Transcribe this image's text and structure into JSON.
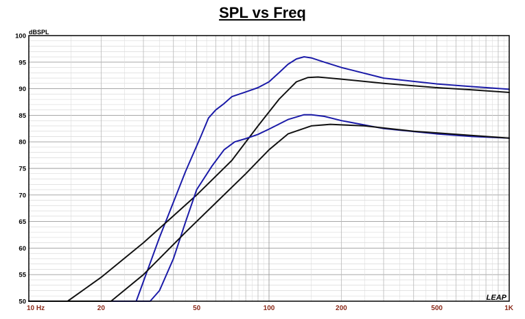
{
  "chart_data": {
    "type": "line",
    "title": "SPL vs Freq",
    "ylabel": "dBSPL",
    "xlabel": "",
    "x_scale": "log",
    "xlim": [
      10,
      1000
    ],
    "ylim": [
      50,
      100
    ],
    "grid": true,
    "x_ticks": [
      {
        "value": 10,
        "label": "10  Hz"
      },
      {
        "value": 20,
        "label": "20"
      },
      {
        "value": 50,
        "label": "50"
      },
      {
        "value": 100,
        "label": "100"
      },
      {
        "value": 200,
        "label": "200"
      },
      {
        "value": 500,
        "label": "500"
      },
      {
        "value": 1000,
        "label": "1K"
      }
    ],
    "y_ticks": [
      100,
      95,
      90,
      85,
      80,
      75,
      70,
      65,
      60,
      55,
      50
    ],
    "watermark": "LEAP",
    "series": [
      {
        "color": "#1a1aa8",
        "points": [
          [
            10,
            50
          ],
          [
            25,
            50
          ],
          [
            28,
            50
          ],
          [
            35,
            62
          ],
          [
            45,
            74.5
          ],
          [
            52,
            81
          ],
          [
            56,
            84.5
          ],
          [
            60,
            86
          ],
          [
            65,
            87.2
          ],
          [
            70,
            88.5
          ],
          [
            80,
            89.4
          ],
          [
            90,
            90.2
          ],
          [
            100,
            91.3
          ],
          [
            110,
            93
          ],
          [
            120,
            94.6
          ],
          [
            130,
            95.6
          ],
          [
            140,
            96
          ],
          [
            150,
            95.8
          ],
          [
            170,
            95
          ],
          [
            200,
            94
          ],
          [
            300,
            92
          ],
          [
            500,
            90.9
          ],
          [
            700,
            90.4
          ],
          [
            1000,
            89.9
          ]
        ]
      },
      {
        "color": "#111111",
        "points": [
          [
            10,
            50
          ],
          [
            14.5,
            50
          ],
          [
            20,
            54.5
          ],
          [
            30,
            61
          ],
          [
            50,
            70
          ],
          [
            70,
            76.5
          ],
          [
            90,
            83
          ],
          [
            110,
            88
          ],
          [
            130,
            91.3
          ],
          [
            145,
            92.1
          ],
          [
            160,
            92.2
          ],
          [
            200,
            91.8
          ],
          [
            300,
            91
          ],
          [
            500,
            90.2
          ],
          [
            700,
            89.8
          ],
          [
            1000,
            89.3
          ]
        ]
      },
      {
        "color": "#1a1aa8",
        "points": [
          [
            10,
            50
          ],
          [
            32,
            50
          ],
          [
            35,
            52
          ],
          [
            40,
            58
          ],
          [
            45,
            65
          ],
          [
            50,
            71
          ],
          [
            58,
            75.5
          ],
          [
            65,
            78.5
          ],
          [
            72,
            80
          ],
          [
            80,
            80.6
          ],
          [
            90,
            81.4
          ],
          [
            100,
            82.4
          ],
          [
            120,
            84.2
          ],
          [
            140,
            85.1
          ],
          [
            150,
            85.1
          ],
          [
            170,
            84.8
          ],
          [
            200,
            84
          ],
          [
            300,
            82.5
          ],
          [
            500,
            81.5
          ],
          [
            700,
            81
          ],
          [
            1000,
            80.7
          ]
        ]
      },
      {
        "color": "#111111",
        "points": [
          [
            10,
            50
          ],
          [
            22,
            50
          ],
          [
            30,
            55
          ],
          [
            45,
            63
          ],
          [
            60,
            68.5
          ],
          [
            80,
            74
          ],
          [
            100,
            78.5
          ],
          [
            120,
            81.5
          ],
          [
            150,
            83
          ],
          [
            180,
            83.3
          ],
          [
            250,
            83
          ],
          [
            400,
            82
          ],
          [
            700,
            81.2
          ],
          [
            1000,
            80.7
          ]
        ]
      }
    ]
  }
}
